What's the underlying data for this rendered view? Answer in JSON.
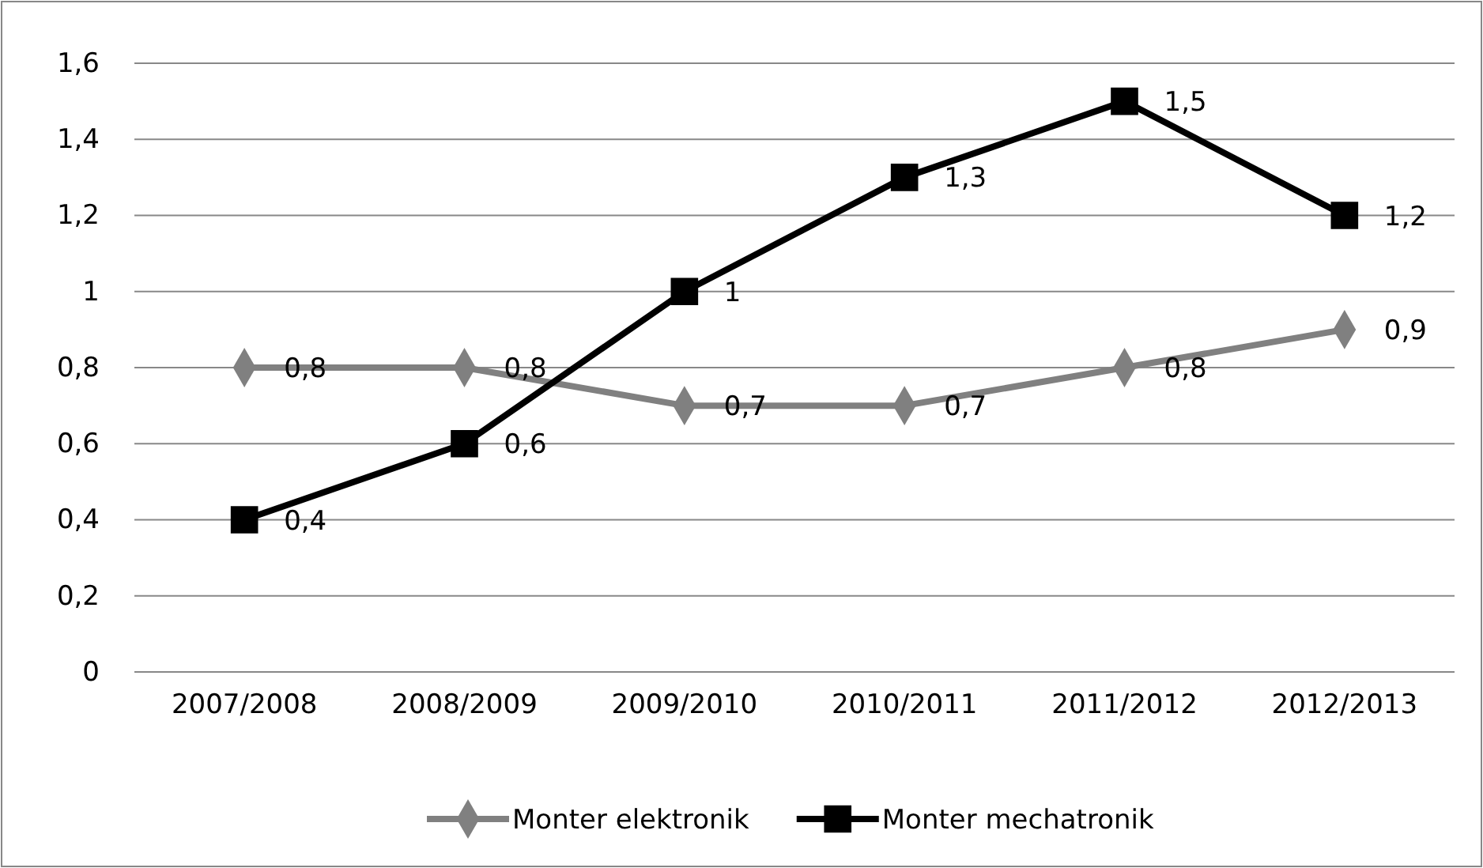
{
  "chart_data": {
    "type": "line",
    "categories": [
      "2007/2008",
      "2008/2009",
      "2009/2010",
      "2010/2011",
      "2011/2012",
      "2012/2013"
    ],
    "series": [
      {
        "name": "Monter elektronik",
        "color": "#808080",
        "marker": "diamond",
        "values": [
          0.8,
          0.8,
          0.7,
          0.7,
          0.8,
          0.9
        ],
        "value_labels": [
          "0,8",
          "0,8",
          "0,7",
          "0,7",
          "0,8",
          "0,9"
        ]
      },
      {
        "name": "Monter mechatronik",
        "color": "#000000",
        "marker": "square",
        "values": [
          0.4,
          0.6,
          1,
          1.3,
          1.5,
          1.2
        ],
        "value_labels": [
          "0,4",
          "0,6",
          "1",
          "1,3",
          "1,5",
          "1,2"
        ]
      }
    ],
    "ylim": [
      0,
      1.6
    ],
    "yticks": [
      0,
      {
        "value": 0.2,
        "label": "0,2"
      },
      {
        "value": 0.4,
        "label": "0,4"
      },
      {
        "value": 0.6,
        "label": "0,6"
      },
      {
        "value": 0.8,
        "label": "0,8"
      },
      1,
      {
        "value": 1.2,
        "label": "1,2"
      },
      {
        "value": 1.4,
        "label": "1,4"
      },
      {
        "value": 1.6,
        "label": "1,6"
      }
    ],
    "grid": "y",
    "legend": "bottom",
    "line_style": "solid"
  }
}
